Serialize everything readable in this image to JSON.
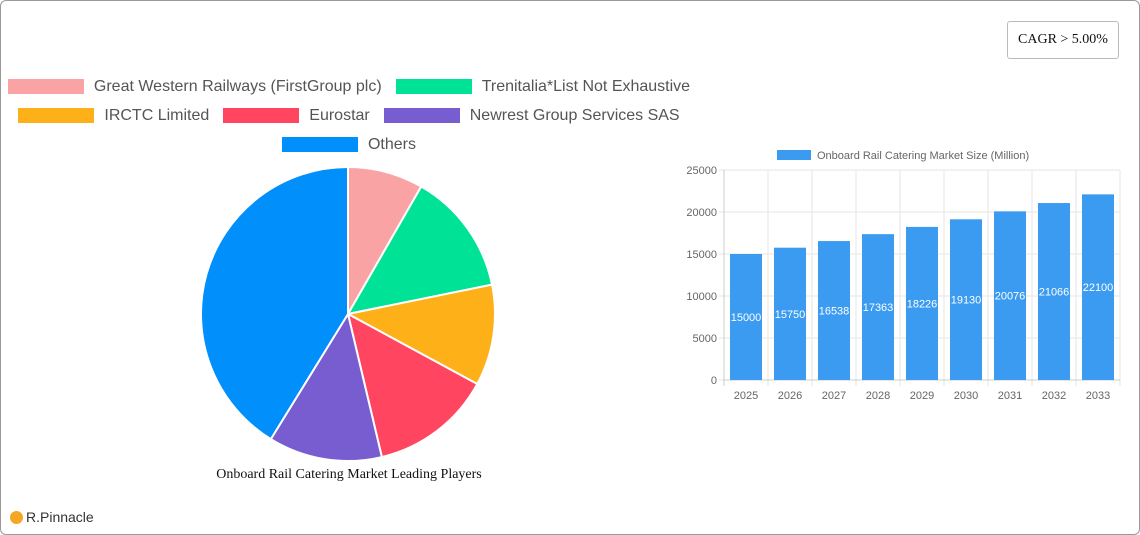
{
  "cagr_badge": "CAGR > 5.00%",
  "brand": {
    "name": "R.Pinnacle",
    "icon": "logo-icon",
    "color": "#f5a623"
  },
  "chart_data": [
    {
      "type": "pie",
      "title": "Onboard Rail Catering Market Leading Players",
      "legend_position": "top",
      "categories": [
        "Great Western Railways (FirstGroup plc)",
        "Trenitalia*List Not Exhaustive",
        "IRCTC Limited",
        "Eurostar",
        "Newrest Group Services SAS",
        "Others"
      ],
      "values": [
        8.3,
        13.5,
        11.1,
        13.4,
        12.5,
        41.2
      ],
      "colors": [
        "#f9a3a4",
        "#00e396",
        "#feb019",
        "#ff4560",
        "#775dd0",
        "#008ffb"
      ]
    },
    {
      "type": "bar",
      "title": "",
      "legend": [
        "Onboard Rail Catering Market Size (Million)"
      ],
      "legend_position": "top",
      "categories": [
        "2025",
        "2026",
        "2027",
        "2028",
        "2029",
        "2030",
        "2031",
        "2032",
        "2033"
      ],
      "series": [
        {
          "name": "Onboard Rail Catering Market Size (Million)",
          "values": [
            15000,
            15750,
            16538,
            17363,
            18226,
            19130,
            20076,
            21066,
            22100
          ],
          "color": "#3a9bf0"
        }
      ],
      "xlabel": "",
      "ylabel": "",
      "ylim": [
        0,
        25000
      ],
      "yticks": [
        0,
        5000,
        10000,
        15000,
        20000,
        25000
      ],
      "grid": true,
      "data_labels": true
    }
  ]
}
